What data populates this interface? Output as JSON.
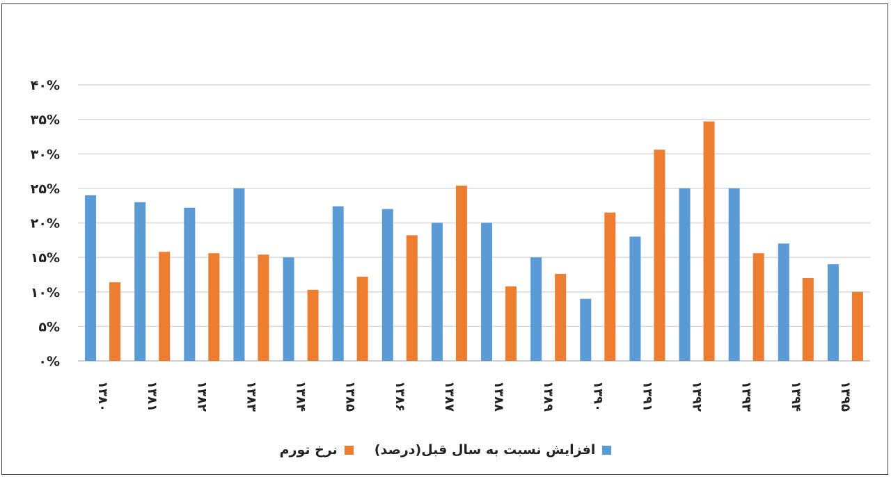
{
  "chart_data": {
    "type": "bar",
    "categories": [
      "۱۳۸۰",
      "۱۳۸۱",
      "۱۳۸۲",
      "۱۳۸۳",
      "۱۳۸۴",
      "۱۳۸۵",
      "۱۳۸۶",
      "۱۳۸۷",
      "۱۳۸۸",
      "۱۳۸۹",
      "۱۳۹۰",
      "۱۳۹۱",
      "۱۳۹۲",
      "۱۳۹۳",
      "۱۳۹۴",
      "۱۳۹۵"
    ],
    "series": [
      {
        "name": "افزایش نسبت به سال قبل(درصد)",
        "color": "#5b9bd5",
        "values": [
          24,
          23,
          22.2,
          25,
          15,
          22.4,
          22,
          20,
          20,
          15,
          9,
          18,
          25,
          25,
          17,
          14
        ]
      },
      {
        "name": "نرخ تورم",
        "color": "#ed7d31",
        "values": [
          11.4,
          15.8,
          15.6,
          15.4,
          10.3,
          12.2,
          18.2,
          25.4,
          10.8,
          12.6,
          21.5,
          30.6,
          34.7,
          15.6,
          12.0,
          10.0
        ]
      }
    ],
    "yticks": [
      "۰%",
      "۵%",
      "۱۰%",
      "۱۵%",
      "۲۰%",
      "۲۵%",
      "۳۰%",
      "۳۵%",
      "۴۰%"
    ],
    "ylim": [
      0,
      40
    ],
    "grid": true,
    "legend_position": "bottom"
  }
}
